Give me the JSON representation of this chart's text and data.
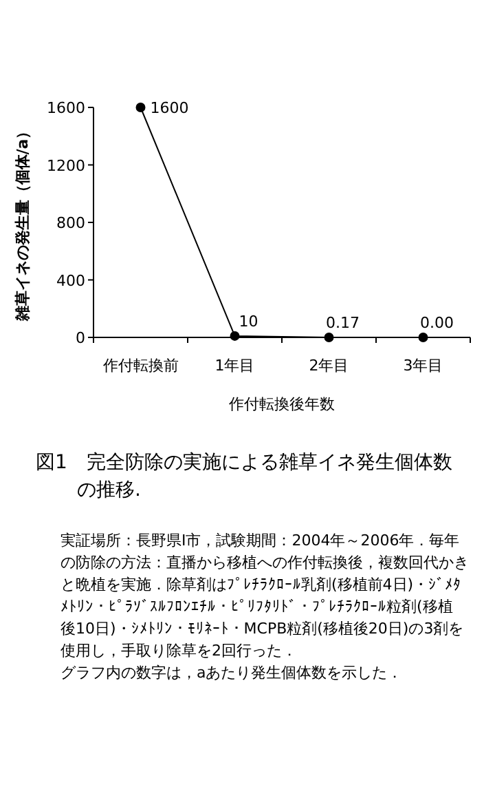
{
  "chart_data": {
    "type": "line",
    "title": "図1　完全防除の実施による雑草イネ発生個体数の推移.",
    "xlabel": "作付転換後年数",
    "ylabel": "雑草イネの発生量（個体/a）",
    "categories": [
      "作付転換前",
      "1年目",
      "2年目",
      "3年目"
    ],
    "series": [
      {
        "color": "#000000",
        "values": [
          1600,
          10,
          0.17,
          0.0
        ],
        "value_labels": [
          "1600",
          "10",
          "0.17",
          "0.00"
        ]
      }
    ],
    "ylim": [
      0,
      1600
    ],
    "yticks": [
      0,
      400,
      800,
      1200,
      1600
    ],
    "marker": "circle",
    "line_style": "solid",
    "annotations": [
      "実証場所：長野県I市，試験期間：2004年～2006年．毎年の防除の方法：直播から移植への作付転換後，複数回代かきと晩植を実施．除草剤はﾌﾟﾚﾁﾗｸﾛｰﾙ乳剤(移植前4日)・ｼﾞﾒﾀﾒﾄﾘﾝ・ﾋﾟﾗｿﾞｽﾙﾌﾛﾝｴﾁﾙ・ﾋﾟﾘﾌﾀﾘﾄﾞ・ﾌﾟﾚﾁﾗｸﾛｰﾙ粒剤(移植後10日)・ｼﾒﾄﾘﾝ・ﾓﾘﾈｰﾄ・MCPB粒剤(移植後20日)の3剤を使用し，手取り除草を2回行った．",
      "グラフ内の数字は，aあたり発生個体数を示した．"
    ]
  }
}
